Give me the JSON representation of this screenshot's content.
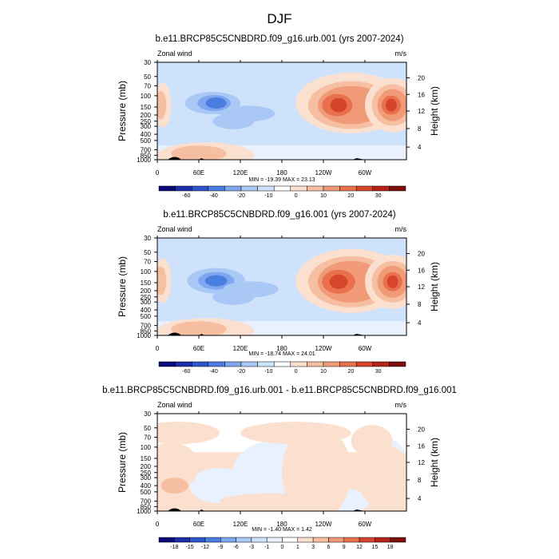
{
  "page": {
    "title": "DJF"
  },
  "chart_data": [
    {
      "type": "contour",
      "title": "b.e11.BRCP85C5CNBDRD.f09_g16.urb.001 (yrs 2007-2024)",
      "left_annotation": "Zonal wind",
      "right_annotation": "m/s",
      "ylabel": "Pressure (mb)",
      "ylabel_right": "Height (km)",
      "x_ticks": [
        "0",
        "60E",
        "120E",
        "180",
        "120W",
        "60W"
      ],
      "y_ticks": [
        "30",
        "50",
        "70",
        "100",
        "150",
        "200",
        "250",
        "300",
        "400",
        "500",
        "700",
        "850",
        "1000"
      ],
      "height_ticks": [
        "4",
        "8",
        "12",
        "16",
        "20"
      ],
      "stats": "MIN = -19.39  MAX =  23.13",
      "colorbar_labels": [
        "-60",
        "-40",
        "-20",
        "-10",
        "0",
        "10",
        "20",
        "30"
      ],
      "colorbar_colors": [
        "#0a0a78",
        "#1d2fa8",
        "#2f55cc",
        "#4a7de0",
        "#7ea7ef",
        "#aac8f6",
        "#cfe2fb",
        "#ffffff",
        "#fbe0cf",
        "#f7bfa2",
        "#f19a78",
        "#e8704d",
        "#d5452b",
        "#b52418",
        "#7e0e0c"
      ]
    },
    {
      "type": "contour",
      "title": "b.e11.BRCP85C5CNBDRD.f09_g16.001 (yrs 2007-2024)",
      "left_annotation": "Zonal wind",
      "right_annotation": "m/s",
      "ylabel": "Pressure (mb)",
      "ylabel_right": "Height (km)",
      "x_ticks": [
        "0",
        "60E",
        "120E",
        "180",
        "120W",
        "60W"
      ],
      "y_ticks": [
        "30",
        "50",
        "70",
        "100",
        "150",
        "200",
        "250",
        "300",
        "400",
        "500",
        "700",
        "850",
        "1000"
      ],
      "height_ticks": [
        "4",
        "8",
        "12",
        "16",
        "20"
      ],
      "stats": "MIN = -18.74  MAX =  24.01",
      "colorbar_labels": [
        "-60",
        "-40",
        "-20",
        "-10",
        "0",
        "10",
        "20",
        "30"
      ],
      "colorbar_colors": [
        "#0a0a78",
        "#1d2fa8",
        "#2f55cc",
        "#4a7de0",
        "#7ea7ef",
        "#aac8f6",
        "#cfe2fb",
        "#ffffff",
        "#fbe0cf",
        "#f7bfa2",
        "#f19a78",
        "#e8704d",
        "#d5452b",
        "#b52418",
        "#7e0e0c"
      ]
    },
    {
      "type": "contour",
      "title": "b.e11.BRCP85C5CNBDRD.f09_g16.urb.001 - b.e11.BRCP85C5CNBDRD.f09_g16.001",
      "left_annotation": "Zonal wind",
      "right_annotation": "m/s",
      "ylabel": "Pressure (mb)",
      "ylabel_right": "Height (km)",
      "x_ticks": [
        "0",
        "60E",
        "120E",
        "180",
        "120W",
        "60W"
      ],
      "y_ticks": [
        "30",
        "50",
        "70",
        "100",
        "150",
        "200",
        "250",
        "300",
        "400",
        "500",
        "700",
        "850",
        "1000"
      ],
      "height_ticks": [
        "4",
        "8",
        "12",
        "16",
        "20"
      ],
      "stats": "MIN =  -1.40  MAX =   1.42",
      "colorbar_labels": [
        "-18",
        "-15",
        "-12",
        "-9",
        "-6",
        "-3",
        "-1",
        "0",
        "1",
        "3",
        "6",
        "9",
        "12",
        "15",
        "18"
      ],
      "colorbar_colors": [
        "#0a0a78",
        "#1d2fa8",
        "#2f55cc",
        "#4a7de0",
        "#7ea7ef",
        "#aac8f6",
        "#cfe2fb",
        "#e8f1fd",
        "#ffffff",
        "#fbe0cf",
        "#f7bfa2",
        "#f19a78",
        "#e8704d",
        "#d5452b",
        "#b52418",
        "#7e0e0c"
      ]
    }
  ]
}
